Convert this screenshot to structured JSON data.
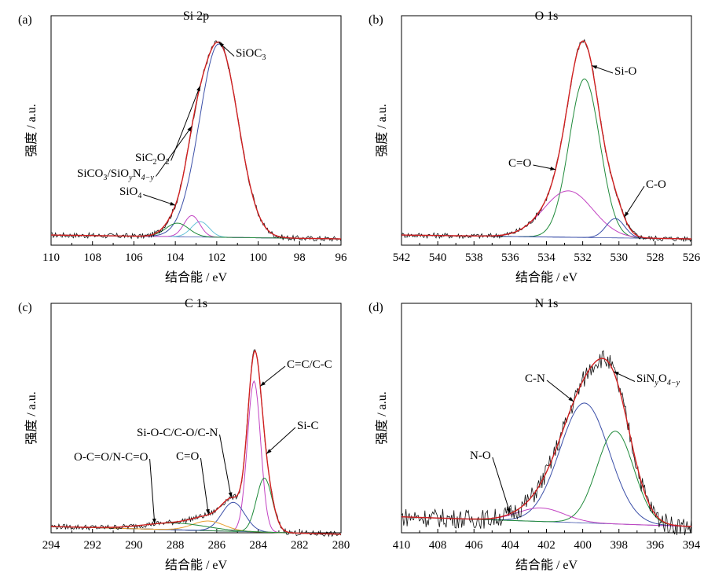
{
  "chart_data": [
    {
      "type": "line",
      "panel_label": "(a)",
      "title": "Si 2p",
      "xlabel": "结合能 / eV",
      "ylabel": "强度 / a.u.",
      "xlim": [
        110,
        96
      ],
      "x_reversed": true,
      "ticks": [
        "110",
        "108",
        "106",
        "104",
        "102",
        "100",
        "98",
        "96"
      ],
      "series": [
        {
          "name": "SiOC3",
          "color": "#3b4fa8",
          "center": 101.9,
          "fwhm": 2.2,
          "amplitude": 1.0
        },
        {
          "name": "SiC2O2",
          "color": "#66c2d8",
          "center": 102.8,
          "fwhm": 1.0,
          "amplitude": 0.08
        },
        {
          "name": "SiCO3/SiOyN4−y",
          "color": "#c242c2",
          "center": 103.2,
          "fwhm": 0.9,
          "amplitude": 0.11
        },
        {
          "name": "SiO4",
          "color": "#1f8a3a",
          "center": 103.9,
          "fwhm": 1.3,
          "amplitude": 0.07
        }
      ],
      "baseline": {
        "left": 0.02,
        "right": 0.0
      },
      "annotations": [
        {
          "text": "SiOC",
          "sub": "3",
          "points_to": 101.9
        },
        {
          "text": "SiC",
          "sub": "2",
          "text2": "O",
          "sub2": "2",
          "points_to": 102.8
        },
        {
          "text": "SiCO",
          "sub": "3",
          "text2": "/SiO",
          "sub2": "y",
          "text3": "N",
          "sub3": "4−y",
          "points_to": 103.2
        },
        {
          "text": "SiO",
          "sub": "4",
          "points_to": 104.0
        }
      ]
    },
    {
      "type": "line",
      "panel_label": "(b)",
      "title": "O 1s",
      "xlabel": "结合能 / eV",
      "ylabel": "强度 / a.u.",
      "xlim": [
        542,
        526
      ],
      "x_reversed": true,
      "ticks": [
        "542",
        "540",
        "538",
        "536",
        "534",
        "532",
        "530",
        "528",
        "526"
      ],
      "series": [
        {
          "name": "Si-O",
          "color": "#1f8a3a",
          "center": 531.9,
          "fwhm": 2.0,
          "amplitude": 0.82
        },
        {
          "name": "C=O",
          "color": "#c242c2",
          "center": 532.8,
          "fwhm": 3.2,
          "amplitude": 0.24
        },
        {
          "name": "C-O",
          "color": "#3b4fa8",
          "center": 530.2,
          "fwhm": 1.2,
          "amplitude": 0.1
        }
      ],
      "baseline": {
        "left": 0.02,
        "right": 0.0
      },
      "annotations": [
        {
          "text": "Si-O",
          "points_to": 531.5
        },
        {
          "text": "C=O",
          "points_to": 533.5
        },
        {
          "text": "C-O",
          "points_to": 529.7
        }
      ]
    },
    {
      "type": "line",
      "panel_label": "(c)",
      "title": "C 1s",
      "xlabel": "结合能 / eV",
      "ylabel": "强度 / a.u.",
      "xlim": [
        294,
        280
      ],
      "x_reversed": true,
      "ticks": [
        "294",
        "292",
        "290",
        "288",
        "286",
        "284",
        "282",
        "280"
      ],
      "series": [
        {
          "name": "C=C/C-C",
          "color": "#c242c2",
          "center": 284.2,
          "fwhm": 0.75,
          "amplitude": 0.78
        },
        {
          "name": "Si-C",
          "color": "#1f8a3a",
          "center": 283.7,
          "fwhm": 0.9,
          "amplitude": 0.28
        },
        {
          "name": "Si-O-C/C-O/C-N",
          "color": "#3b4fa8",
          "center": 285.2,
          "fwhm": 1.3,
          "amplitude": 0.15
        },
        {
          "name": "C=O",
          "color": "#e8a030",
          "center": 286.4,
          "fwhm": 1.8,
          "amplitude": 0.05
        },
        {
          "name": "O-C=O/N-C=O",
          "color": "#1f8a3a",
          "center": 288.0,
          "fwhm": 3.5,
          "amplitude": 0.035
        }
      ],
      "baseline": {
        "left": 0.0,
        "right": -0.04
      },
      "annotations": [
        {
          "text": "C=C/C-C",
          "points_to": 283.9
        },
        {
          "text": "Si-C",
          "points_to": 283.6
        },
        {
          "text": "Si-O-C/C-O/C-N",
          "points_to": 285.3
        },
        {
          "text": "C=O",
          "points_to": 286.4
        },
        {
          "text": "O-C=O/N-C=O",
          "points_to": 289.0
        }
      ]
    },
    {
      "type": "line",
      "panel_label": "(d)",
      "title": "N 1s",
      "xlabel": "结合能 / eV",
      "ylabel": "强度 / a.u.",
      "xlim": [
        410,
        394
      ],
      "x_reversed": true,
      "ticks": [
        "410",
        "408",
        "406",
        "404",
        "402",
        "400",
        "398",
        "396",
        "394"
      ],
      "series": [
        {
          "name": "C-N",
          "color": "#3b4fa8",
          "center": 399.9,
          "fwhm": 3.2,
          "amplitude": 0.62
        },
        {
          "name": "SiNyO4−y",
          "color": "#1f8a3a",
          "center": 398.2,
          "fwhm": 2.4,
          "amplitude": 0.48
        },
        {
          "name": "N-O",
          "color": "#c242c2",
          "center": 402.3,
          "fwhm": 3.0,
          "amplitude": 0.07
        }
      ],
      "baseline": {
        "left": 0.05,
        "right": 0.0
      },
      "annotations": [
        {
          "text": "C-N",
          "points_to": 400.5
        },
        {
          "text": "SiN",
          "sub": "y",
          "text2": "O",
          "sub2": "4−y",
          "points_to": 398.3
        },
        {
          "text": "N-O",
          "points_to": 404.0
        }
      ]
    }
  ]
}
